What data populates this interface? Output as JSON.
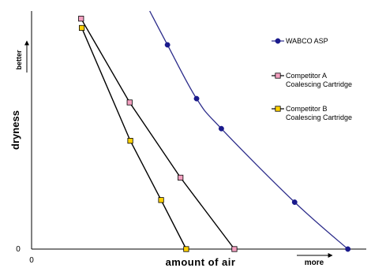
{
  "chart_data": {
    "type": "line",
    "title": "",
    "xlabel": "amount of air",
    "ylabel": "dryness",
    "x_origin_label": "0",
    "y_origin_label": "0",
    "x_direction_label": "more",
    "y_direction_label": "better",
    "xlim": [
      0,
      100
    ],
    "ylim": [
      0,
      100
    ],
    "grid": false,
    "legend_position": "right",
    "series": [
      {
        "name": "WABCO ASP",
        "legend_lines": [
          "WABCO ASP"
        ],
        "color": "#2b2b8a",
        "marker": "circle",
        "marker_fill": "#1a1a8c",
        "smooth": true,
        "points": [
          {
            "x": 35.3,
            "y": 100
          },
          {
            "x": 40.6,
            "y": 85.8
          },
          {
            "x": 49.3,
            "y": 63.2
          },
          {
            "x": 56.7,
            "y": 50.6
          },
          {
            "x": 78.6,
            "y": 19.7
          },
          {
            "x": 94.5,
            "y": 0
          }
        ],
        "markers": [
          1,
          2,
          3,
          4,
          5
        ]
      },
      {
        "name": "Competitor A Coalescing Cartridge",
        "legend_lines": [
          "Competitor A",
          "Coalescing Cartridge"
        ],
        "color": "#000000",
        "marker": "square",
        "marker_fill": "#f4a0c0",
        "smooth": false,
        "points": [
          {
            "x": 14.8,
            "y": 96.8
          },
          {
            "x": 29.3,
            "y": 61.6
          },
          {
            "x": 44.5,
            "y": 30.0
          },
          {
            "x": 60.6,
            "y": 0
          }
        ],
        "markers": [
          0,
          1,
          2,
          3
        ]
      },
      {
        "name": "Competitor B Coalescing Cartridge",
        "legend_lines": [
          "Competitor B",
          "Coalescing Cartridge"
        ],
        "color": "#000000",
        "marker": "square",
        "marker_fill": "#ffd200",
        "smooth": false,
        "points": [
          {
            "x": 15.0,
            "y": 92.9
          },
          {
            "x": 29.5,
            "y": 45.5
          },
          {
            "x": 38.7,
            "y": 20.6
          },
          {
            "x": 46.2,
            "y": 0
          }
        ],
        "markers": [
          0,
          1,
          2,
          3
        ]
      }
    ]
  }
}
